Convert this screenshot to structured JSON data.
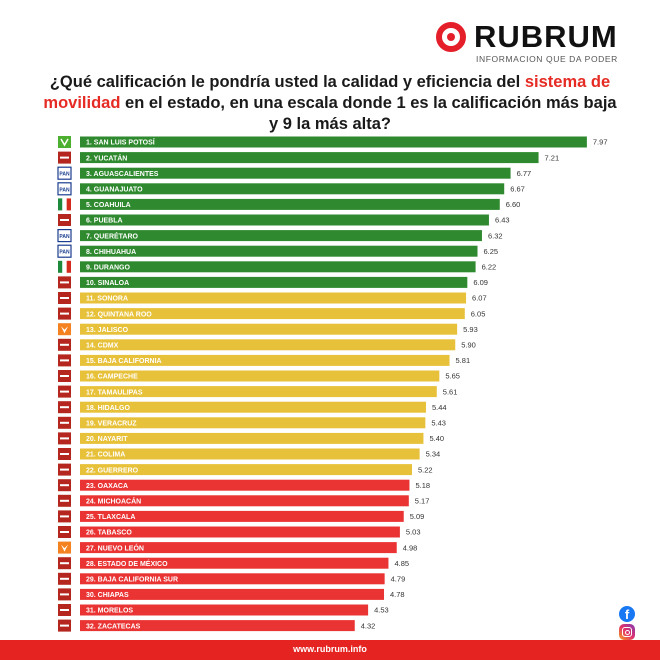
{
  "brand": {
    "name": "RUBRUM",
    "tagline": "INFORMACION QUE DA PODER",
    "accent": "#e52421"
  },
  "title": {
    "part1": "¿Qué calificación le pondría usted la calidad y eficiencia del",
    "highlight": "sistema de movilidad",
    "part2": "en el estado, en una escala donde 1 es la calificación más baja y 9 la más alta?"
  },
  "chart_data": {
    "type": "bar",
    "orientation": "horizontal",
    "xlim": [
      0,
      9
    ],
    "grid": false,
    "colors": {
      "green": "#2f8a2f",
      "yellow": "#e8c13a",
      "red": "#ea3434"
    },
    "categories": [
      "1. SAN LUIS POTOSÍ",
      "2. YUCATÁN",
      "3. AGUASCALIENTES",
      "4. GUANAJUATO",
      "5. COAHUILA",
      "6. PUEBLA",
      "7. QUERÉTARO",
      "8. CHIHUAHUA",
      "9. DURANGO",
      "10. SINALOA",
      "11. SONORA",
      "12. QUINTANA ROO",
      "13. JALISCO",
      "14. CDMX",
      "15. BAJA CALIFORNIA",
      "16. CAMPECHE",
      "17. TAMAULIPAS",
      "18. HIDALGO",
      "19. VERACRUZ",
      "20. NAYARIT",
      "21. COLIMA",
      "22. GUERRERO",
      "23. OAXACA",
      "24. MICHOACÁN",
      "25. TLAXCALA",
      "26. TABASCO",
      "27. NUEVO LEÓN",
      "28. ESTADO DE MÉXICO",
      "29. BAJA CALIFORNIA SUR",
      "30. CHIAPAS",
      "31. MORELOS",
      "32. ZACATECAS"
    ],
    "values": [
      7.97,
      7.21,
      6.77,
      6.67,
      6.6,
      6.43,
      6.32,
      6.25,
      6.22,
      6.09,
      6.07,
      6.05,
      5.93,
      5.9,
      5.81,
      5.65,
      5.61,
      5.44,
      5.43,
      5.4,
      5.34,
      5.22,
      5.18,
      5.17,
      5.09,
      5.03,
      4.98,
      4.85,
      4.79,
      4.78,
      4.53,
      4.32
    ],
    "value_labels": [
      "7.97",
      "7.21",
      "6.77",
      "6.67",
      "6.60",
      "6.43",
      "6.32",
      "6.25",
      "6.22",
      "6.09",
      "6.07",
      "6.05",
      "5.93",
      "5.90",
      "5.81",
      "5.65",
      "5.61",
      "5.44",
      "5.43",
      "5.40",
      "5.34",
      "5.22",
      "5.18",
      "5.17",
      "5.09",
      "5.03",
      "4.98",
      "4.85",
      "4.79",
      "4.78",
      "4.53",
      "4.32"
    ],
    "bar_colors": [
      "green",
      "green",
      "green",
      "green",
      "green",
      "green",
      "green",
      "green",
      "green",
      "green",
      "yellow",
      "yellow",
      "yellow",
      "yellow",
      "yellow",
      "yellow",
      "yellow",
      "yellow",
      "yellow",
      "yellow",
      "yellow",
      "yellow",
      "red",
      "red",
      "red",
      "red",
      "red",
      "red",
      "red",
      "red",
      "red",
      "red"
    ],
    "party_icons": [
      "pvem-logo-icon",
      "morena-logo-icon",
      "pan-logo-icon",
      "pan-logo-icon",
      "pri-logo-icon",
      "morena-logo-icon",
      "pan-logo-icon",
      "pan-logo-icon",
      "pri-logo-icon",
      "morena-logo-icon",
      "morena-logo-icon",
      "morena-logo-icon",
      "mc-logo-icon",
      "morena-logo-icon",
      "morena-logo-icon",
      "morena-logo-icon",
      "morena-logo-icon",
      "morena-logo-icon",
      "morena-logo-icon",
      "morena-logo-icon",
      "morena-logo-icon",
      "morena-logo-icon",
      "morena-logo-icon",
      "morena-logo-icon",
      "morena-logo-icon",
      "morena-logo-icon",
      "mc-logo-icon",
      "morena-logo-icon",
      "morena-logo-icon",
      "morena-logo-icon",
      "morena-logo-icon",
      "morena-logo-icon"
    ]
  },
  "footer": {
    "url": "www.rubrum.info"
  },
  "social": [
    "facebook-icon",
    "instagram-icon"
  ]
}
